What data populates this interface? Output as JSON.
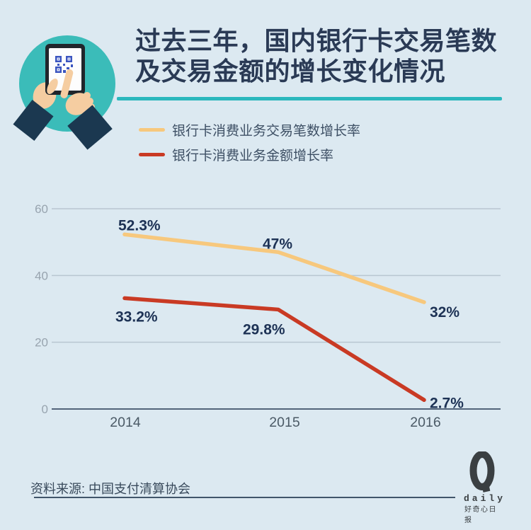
{
  "page": {
    "background": "#DCE9F1"
  },
  "header": {
    "title_line1": "过去三年，国内银行卡交易笔数",
    "title_line2": "及交易金额的增长变化情况",
    "icon": "qr-scan-hands-icon",
    "divider_color": "#2BB8BD"
  },
  "legend": [
    {
      "label": "银行卡消费业务交易笔数增长率",
      "color": "#F7C87D"
    },
    {
      "label": "银行卡消费业务金额增长率",
      "color": "#C93A24"
    }
  ],
  "chart_data": {
    "type": "line",
    "x": [
      "2014",
      "2015",
      "2016"
    ],
    "series": [
      {
        "name": "银行卡消费业务交易笔数增长率",
        "color": "#F7C87D",
        "values": [
          52.3,
          47,
          32
        ],
        "labels": [
          "52.3%",
          "47%",
          "32%"
        ],
        "label_offsets": [
          [
            -9,
            -6
          ],
          [
            -22,
            -5
          ],
          [
            8,
            21
          ]
        ]
      },
      {
        "name": "银行卡消费业务金额增长率",
        "color": "#C93A24",
        "values": [
          33.2,
          29.8,
          2.7
        ],
        "labels": [
          "33.2%",
          "29.8%",
          "2.7%"
        ],
        "label_offsets": [
          [
            -13,
            33
          ],
          [
            -50,
            35
          ],
          [
            8,
            11
          ]
        ]
      }
    ],
    "yticks": [
      0,
      20,
      40,
      60
    ],
    "ylim": [
      0,
      65
    ],
    "grid": true,
    "legend_position": "top-left",
    "grid_color": "#B9C6D1",
    "axis_color": "#52647A",
    "ytick_color": "#98A4AF",
    "xtick_color": "#49ососи5866",
    "xlabel_color": "#4B5A66",
    "data_label_color": "#1D3255"
  },
  "footer": {
    "source": "资料来源: 中国支付清算协会",
    "logo": {
      "letter": "Q",
      "word": "daily",
      "cn": "好奇心日报"
    }
  }
}
